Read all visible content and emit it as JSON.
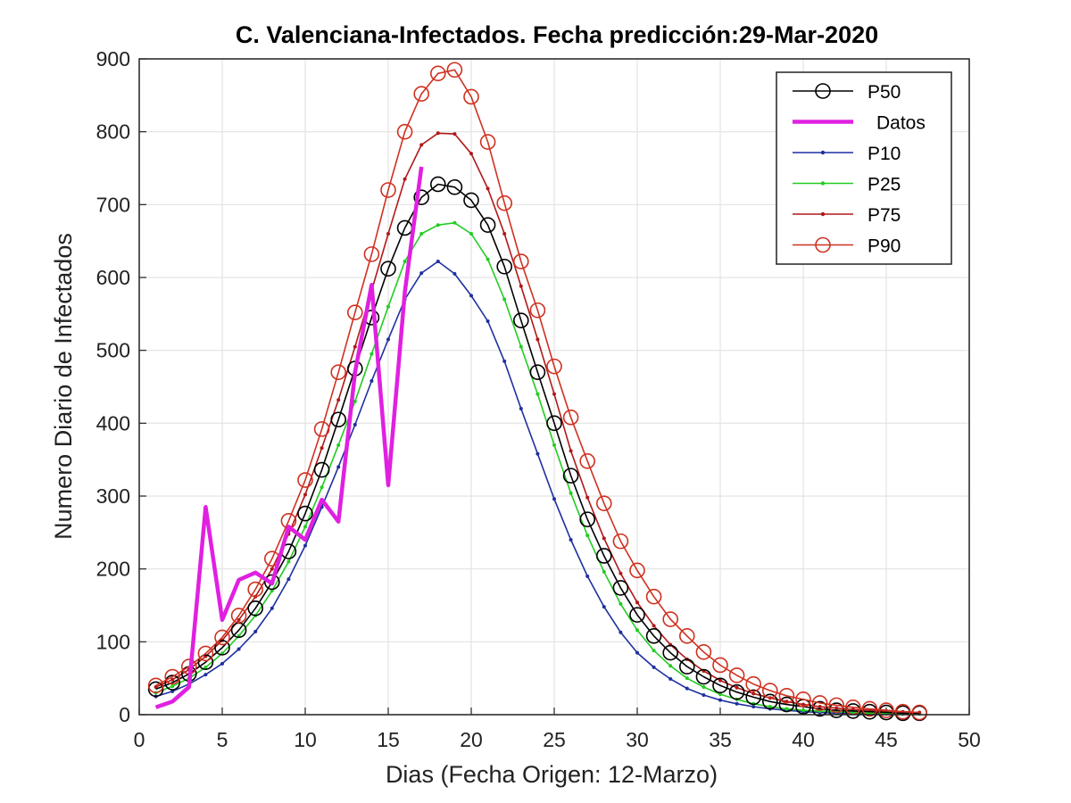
{
  "chart_data": {
    "type": "line",
    "title": "C. Valenciana-Infectados. Fecha predicción:29-Mar-2020",
    "xlabel": "Dias (Fecha Origen: 12-Marzo)",
    "ylabel": "Numero Diario de Infectados",
    "xlim": [
      0,
      50
    ],
    "ylim": [
      0,
      900
    ],
    "xticks": [
      0,
      5,
      10,
      15,
      20,
      25,
      30,
      35,
      40,
      45,
      50
    ],
    "yticks": [
      0,
      100,
      200,
      300,
      400,
      500,
      600,
      700,
      800,
      900
    ],
    "grid": true,
    "legend_position": "top-right",
    "series": [
      {
        "name": "P50",
        "color": "#000000",
        "marker": "circle",
        "x": [
          1,
          2,
          3,
          4,
          5,
          6,
          7,
          8,
          9,
          10,
          11,
          12,
          13,
          14,
          15,
          16,
          17,
          18,
          19,
          20,
          21,
          22,
          23,
          24,
          25,
          26,
          27,
          28,
          29,
          30,
          31,
          32,
          33,
          34,
          35,
          36,
          37,
          38,
          39,
          40,
          41,
          42,
          43,
          44,
          45,
          46,
          47
        ],
        "y": [
          35,
          44,
          56,
          72,
          92,
          116,
          146,
          182,
          224,
          276,
          336,
          405,
          475,
          545,
          612,
          668,
          710,
          728,
          724,
          706,
          672,
          615,
          541,
          470,
          400,
          328,
          268,
          218,
          174,
          137,
          108,
          85,
          66,
          52,
          40,
          31,
          24,
          18,
          14,
          11,
          8,
          6,
          5,
          4,
          3,
          2,
          2
        ]
      },
      {
        "name": "Datos",
        "color": "#e020e0",
        "marker": "none",
        "x": [
          1,
          2,
          3,
          4,
          5,
          6,
          7,
          8,
          9,
          10,
          11,
          12,
          13,
          14,
          15,
          16,
          17
        ],
        "y": [
          10,
          18,
          38,
          285,
          130,
          185,
          195,
          180,
          258,
          240,
          295,
          265,
          470,
          590,
          315,
          580,
          752
        ]
      },
      {
        "name": "P10",
        "color": "#1f2fa0",
        "marker": "dot",
        "x": [
          1,
          2,
          3,
          4,
          5,
          6,
          7,
          8,
          9,
          10,
          11,
          12,
          13,
          14,
          15,
          16,
          17,
          18,
          19,
          20,
          21,
          22,
          23,
          24,
          25,
          26,
          27,
          28,
          29,
          30,
          31,
          32,
          33,
          34,
          35,
          36,
          37,
          38,
          39,
          40,
          41,
          42,
          43,
          44,
          45,
          46,
          47
        ],
        "y": [
          25,
          32,
          42,
          55,
          70,
          90,
          114,
          146,
          186,
          232,
          285,
          340,
          398,
          458,
          515,
          570,
          606,
          622,
          605,
          575,
          540,
          485,
          420,
          358,
          296,
          240,
          190,
          148,
          113,
          85,
          65,
          49,
          36,
          27,
          20,
          15,
          11,
          8,
          6,
          4,
          3,
          2,
          2,
          1,
          1,
          1,
          1
        ]
      },
      {
        "name": "P25",
        "color": "#22cc22",
        "marker": "dot",
        "x": [
          1,
          2,
          3,
          4,
          5,
          6,
          7,
          8,
          9,
          10,
          11,
          12,
          13,
          14,
          15,
          16,
          17,
          18,
          19,
          20,
          21,
          22,
          23,
          24,
          25,
          26,
          27,
          28,
          29,
          30,
          31,
          32,
          33,
          34,
          35,
          36,
          37,
          38,
          39,
          40,
          41,
          42,
          43,
          44,
          45,
          46,
          47
        ],
        "y": [
          30,
          39,
          50,
          65,
          84,
          108,
          136,
          170,
          210,
          258,
          312,
          370,
          430,
          495,
          560,
          622,
          660,
          672,
          675,
          660,
          625,
          570,
          505,
          440,
          370,
          304,
          246,
          196,
          152,
          116,
          88,
          67,
          50,
          38,
          28,
          21,
          15,
          11,
          8,
          6,
          5,
          4,
          3,
          2,
          2,
          1,
          1
        ]
      },
      {
        "name": "P75",
        "color": "#b01818",
        "marker": "dot",
        "x": [
          1,
          2,
          3,
          4,
          5,
          6,
          7,
          8,
          9,
          10,
          11,
          12,
          13,
          14,
          15,
          16,
          17,
          18,
          19,
          20,
          21,
          22,
          23,
          24,
          25,
          26,
          27,
          28,
          29,
          30,
          31,
          32,
          33,
          34,
          35,
          36,
          37,
          38,
          39,
          40,
          41,
          42,
          43,
          44,
          45,
          46,
          47
        ],
        "y": [
          38,
          48,
          62,
          80,
          102,
          130,
          162,
          200,
          248,
          302,
          366,
          432,
          505,
          582,
          660,
          735,
          782,
          798,
          797,
          770,
          722,
          660,
          588,
          515,
          440,
          362,
          298,
          242,
          194,
          154,
          122,
          96,
          76,
          60,
          47,
          37,
          29,
          23,
          18,
          14,
          11,
          9,
          7,
          6,
          5,
          4,
          3
        ]
      },
      {
        "name": "P90",
        "color": "#d03020",
        "marker": "circle",
        "x": [
          1,
          2,
          3,
          4,
          5,
          6,
          7,
          8,
          9,
          10,
          11,
          12,
          13,
          14,
          15,
          16,
          17,
          18,
          19,
          20,
          21,
          22,
          23,
          24,
          25,
          26,
          27,
          28,
          29,
          30,
          31,
          32,
          33,
          34,
          35,
          36,
          37,
          38,
          39,
          40,
          41,
          42,
          43,
          44,
          45,
          46,
          47
        ],
        "y": [
          40,
          52,
          66,
          84,
          106,
          136,
          172,
          214,
          266,
          322,
          392,
          470,
          552,
          632,
          720,
          800,
          852,
          880,
          885,
          848,
          786,
          702,
          622,
          555,
          478,
          408,
          348,
          290,
          238,
          198,
          162,
          131,
          108,
          86,
          68,
          54,
          42,
          33,
          26,
          21,
          16,
          13,
          10,
          8,
          6,
          4,
          3
        ]
      }
    ]
  }
}
